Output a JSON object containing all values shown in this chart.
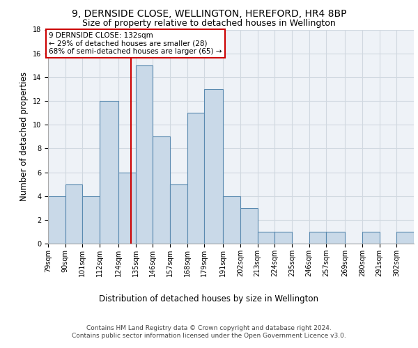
{
  "title1": "9, DERNSIDE CLOSE, WELLINGTON, HEREFORD, HR4 8BP",
  "title2": "Size of property relative to detached houses in Wellington",
  "xlabel": "Distribution of detached houses by size in Wellington",
  "ylabel": "Number of detached properties",
  "bin_labels": [
    "79sqm",
    "90sqm",
    "101sqm",
    "112sqm",
    "124sqm",
    "135sqm",
    "146sqm",
    "157sqm",
    "168sqm",
    "179sqm",
    "191sqm",
    "202sqm",
    "213sqm",
    "224sqm",
    "235sqm",
    "246sqm",
    "257sqm",
    "269sqm",
    "280sqm",
    "291sqm",
    "302sqm"
  ],
  "bin_edges": [
    79,
    90,
    101,
    112,
    124,
    135,
    146,
    157,
    168,
    179,
    191,
    202,
    213,
    224,
    235,
    246,
    257,
    269,
    280,
    291,
    302
  ],
  "counts": [
    4,
    5,
    4,
    12,
    6,
    15,
    9,
    5,
    11,
    13,
    4,
    3,
    1,
    1,
    0,
    1,
    1,
    0,
    1,
    0,
    1
  ],
  "bar_color": "#c9d9e8",
  "bar_edge_color": "#5a8ab0",
  "property_size": 132,
  "vline_color": "#cc0000",
  "annotation_text": "9 DERNSIDE CLOSE: 132sqm\n← 29% of detached houses are smaller (28)\n68% of semi-detached houses are larger (65) →",
  "annotation_box_color": "#ffffff",
  "annotation_box_edge_color": "#cc0000",
  "ylim": [
    0,
    18
  ],
  "yticks": [
    0,
    2,
    4,
    6,
    8,
    10,
    12,
    14,
    16,
    18
  ],
  "grid_color": "#d0d8e0",
  "background_color": "#eef2f7",
  "footer_line1": "Contains HM Land Registry data © Crown copyright and database right 2024.",
  "footer_line2": "Contains public sector information licensed under the Open Government Licence v3.0.",
  "title1_fontsize": 10,
  "title2_fontsize": 9,
  "xlabel_fontsize": 8.5,
  "ylabel_fontsize": 8.5,
  "tick_fontsize": 7,
  "annotation_fontsize": 7.5,
  "footer_fontsize": 6.5
}
